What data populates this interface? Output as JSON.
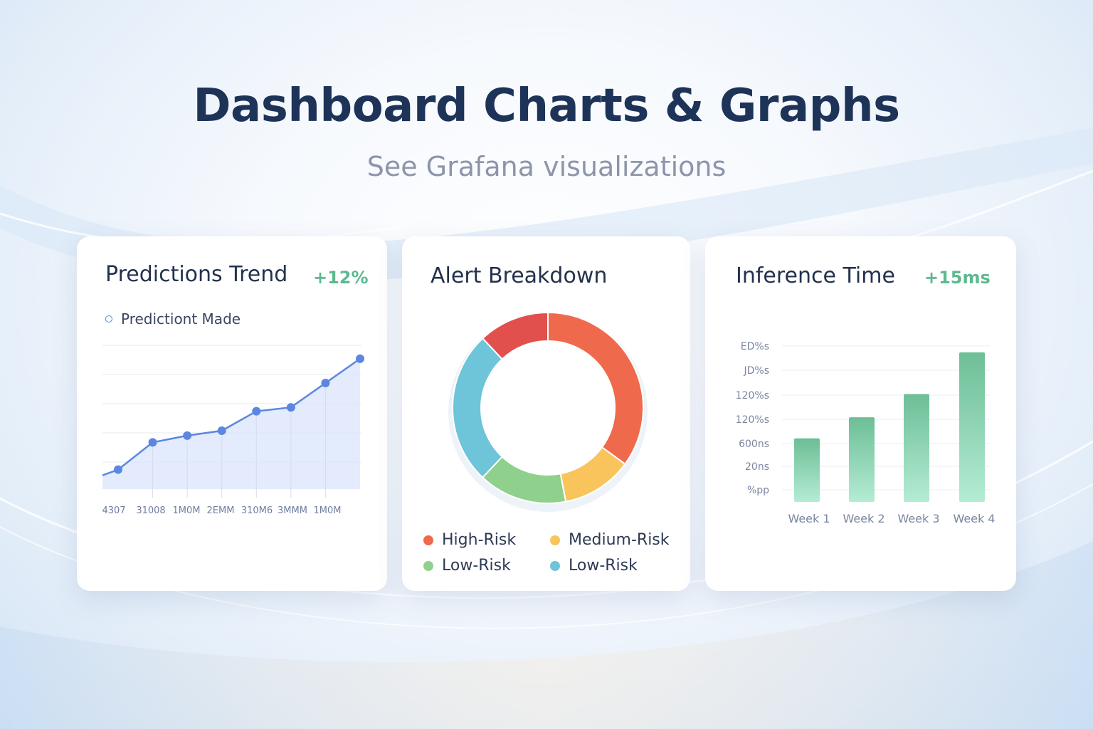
{
  "header": {
    "title": "Dashboard Charts & Graphs",
    "subtitle": "See Grafana visualizations"
  },
  "colors": {
    "title": "#1e3358",
    "subtitle": "#8d95ab",
    "positive_delta": "#5cb98f",
    "line": "#5c86e0",
    "bar": "#78c7a3"
  },
  "chart_data": [
    {
      "type": "area",
      "title": "Predictions Trend",
      "delta": "+12%",
      "series": [
        {
          "name": "Predictiont Made",
          "values": [
            1,
            2.4,
            2.75,
            3.0,
            4.0,
            4.2,
            5.45,
            6.7
          ]
        }
      ],
      "x_tick_labels": [
        "4307",
        "31008",
        "1M0M",
        "2EMM",
        "310M6",
        "3MMM",
        "1M0M"
      ],
      "ylim": [
        0,
        7.5
      ],
      "grid": true,
      "legend": "top-left"
    },
    {
      "type": "pie",
      "title": "Alert Breakdown",
      "donut": true,
      "slices": [
        {
          "label": "High-Risk",
          "value": 35,
          "color": "#ef6a4d"
        },
        {
          "label": "Medium-Risk",
          "value": 12,
          "color": "#f8c45b"
        },
        {
          "label": "Low-Risk",
          "value": 15,
          "color": "#8fd08c"
        },
        {
          "label": "Low-Risk",
          "value": 26,
          "color": "#6ec4d8"
        },
        {
          "label": "",
          "value": 12,
          "color": "#e2504e"
        }
      ],
      "legend": "bottom"
    },
    {
      "type": "bar",
      "title": "Inference Time",
      "delta": "+15ms",
      "categories": [
        "Week 1",
        "Week 2",
        "Week 3",
        "Week 4"
      ],
      "values": [
        96,
        128,
        163,
        226
      ],
      "y_tick_labels": [
        "ED%s",
        "JD%s",
        "120%s",
        "120%s",
        "600ns",
        "20ns",
        "%pp"
      ],
      "ylim": [
        0,
        240
      ],
      "grid": true
    }
  ]
}
